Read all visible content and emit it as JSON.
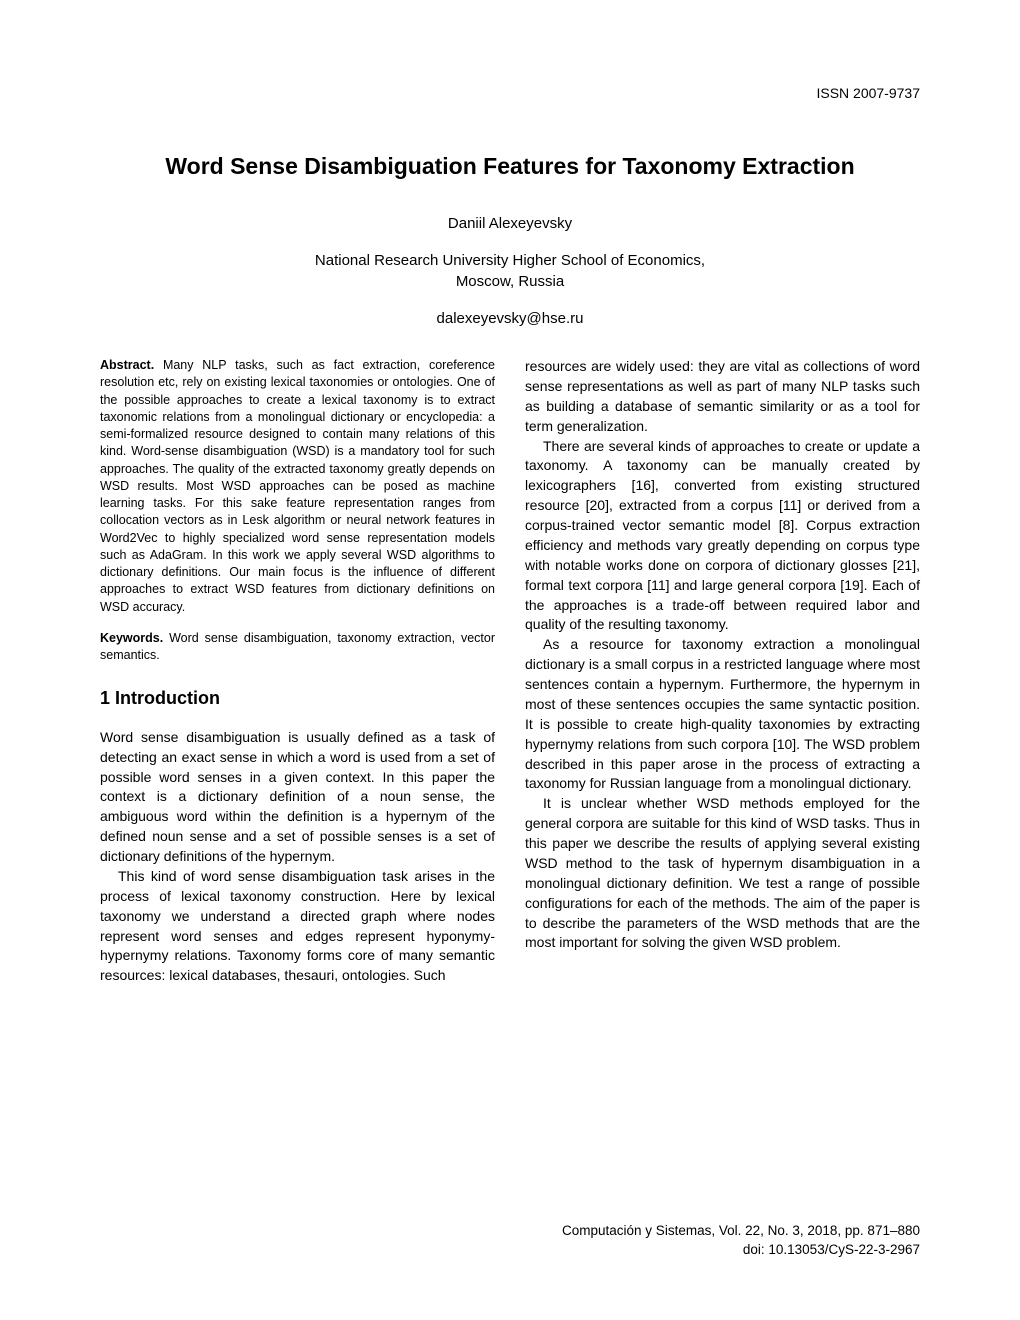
{
  "issn": "ISSN 2007-9737",
  "title": "Word Sense Disambiguation Features for Taxonomy Extraction",
  "author": "Daniil Alexeyevsky",
  "affiliation_line1": "National Research University Higher School of Economics,",
  "affiliation_line2": "Moscow, Russia",
  "email": "dalexeyevsky@hse.ru",
  "abstract_label": "Abstract.",
  "abstract_text": " Many NLP tasks, such as fact extraction, coreference resolution etc, rely on existing lexical taxonomies or ontologies. One of the possible approaches to create a lexical taxonomy is to extract taxonomic relations from a monolingual dictionary or encyclopedia: a semi-formalized resource designed to contain many relations of this kind. Word-sense disambiguation (WSD) is a mandatory tool for such approaches. The quality of the extracted taxonomy greatly depends on WSD results. Most WSD approaches can be posed as machine learning tasks. For this sake feature representation ranges from collocation vectors as in Lesk algorithm or neural network features in Word2Vec to highly specialized word sense representation models such as AdaGram. In this work we apply several WSD algorithms to dictionary definitions. Our main focus is the influence of different approaches to extract WSD features from dictionary definitions on WSD accuracy.",
  "keywords_label": "Keywords.",
  "keywords_text": " Word sense disambiguation, taxonomy extraction, vector semantics.",
  "section1_heading": "1 Introduction",
  "col1_para1": "Word sense disambiguation is usually defined as a task of detecting an exact sense in which a word is used from a set of possible word senses in a given context. In this paper the context is a dictionary definition of a noun sense, the ambiguous word within the definition is a hypernym of the defined noun sense and a set of possible senses is a set of dictionary definitions of the hypernym.",
  "col1_para2": "This kind of word sense disambiguation task arises in the process of lexical taxonomy construction. Here by lexical taxonomy we understand a directed graph where nodes represent word senses and edges represent hyponymy-hypernymy relations. Taxonomy forms core of many semantic resources: lexical databases, thesauri, ontologies. Such",
  "col2_para1": "resources are widely used: they are vital as collections of word sense representations as well as part of many NLP tasks such as building a database of semantic similarity or as a tool for term generalization.",
  "col2_para2": "There are several kinds of approaches to create or update a taxonomy. A taxonomy can be manually created by lexicographers [16], converted from existing structured resource [20], extracted from a corpus [11] or derived from a corpus-trained vector semantic model [8]. Corpus extraction efficiency and methods vary greatly depending on corpus type with notable works done on corpora of dictionary glosses [21], formal text corpora [11] and large general corpora [19]. Each of the approaches is a trade-off between required labor and quality of the resulting taxonomy.",
  "col2_para3": "As a resource for taxonomy extraction a monolingual dictionary is a small corpus in a restricted language where most sentences contain a hypernym. Furthermore, the hypernym in most of these sentences occupies the same syntactic position. It is possible to create high-quality taxonomies by extracting hypernymy relations from such corpora [10]. The WSD problem described in this paper arose in the process of extracting a taxonomy for Russian language from a monolingual dictionary.",
  "col2_para4": "It is unclear whether WSD methods employed for the general corpora are suitable for this kind of WSD tasks. Thus in this paper we describe the results of applying several existing WSD method to the task of hypernym disambiguation in a monolingual dictionary definition. We test a range of possible configurations for each of the methods. The aim of the paper is to describe the parameters of the WSD methods that are the most important for solving the given WSD problem.",
  "footer_line1": "Computación y Sistemas, Vol. 22, No. 3, 2018, pp. 871–880",
  "footer_line2": "doi: 10.13053/CyS-22-3-2967"
}
